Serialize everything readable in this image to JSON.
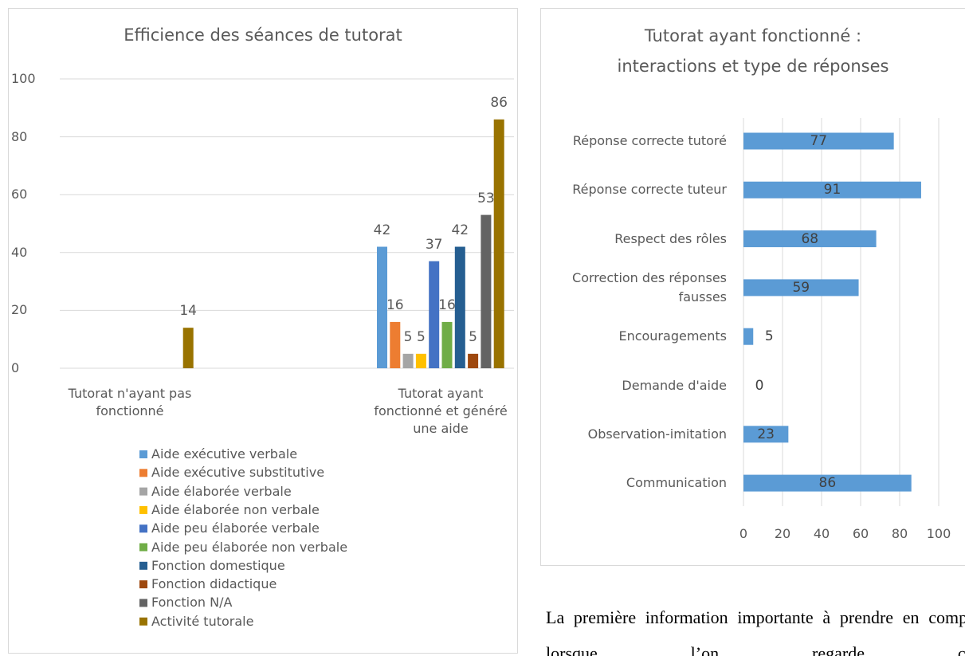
{
  "chart_data": [
    {
      "type": "bar",
      "title": "Efficience des séances de tutorat",
      "categories": [
        "Tutorat n'ayant pas fonctionné",
        "Tutorat ayant fonctionné et généré une aide"
      ],
      "series": [
        {
          "name": "Aide exécutive verbale",
          "color": "#5b9bd5",
          "values": [
            null,
            42
          ]
        },
        {
          "name": "Aide exécutive substitutive",
          "color": "#ed7d31",
          "values": [
            null,
            16
          ]
        },
        {
          "name": "Aide élaborée verbale",
          "color": "#a5a5a5",
          "values": [
            null,
            5
          ]
        },
        {
          "name": "Aide élaborée non verbale",
          "color": "#ffc000",
          "values": [
            null,
            5
          ]
        },
        {
          "name": "Aide peu élaborée verbale",
          "color": "#4472c4",
          "values": [
            null,
            37
          ]
        },
        {
          "name": "Aide peu élaborée non verbale",
          "color": "#70ad47",
          "values": [
            null,
            16
          ]
        },
        {
          "name": "Fonction domestique",
          "color": "#255e91",
          "values": [
            null,
            42
          ]
        },
        {
          "name": "Fonction didactique",
          "color": "#9e480e",
          "values": [
            null,
            5
          ]
        },
        {
          "name": "Fonction N/A",
          "color": "#636363",
          "values": [
            null,
            53
          ]
        },
        {
          "name": "Activité tutorale",
          "color": "#997300",
          "values": [
            14,
            86
          ]
        }
      ],
      "ylim": [
        0,
        100
      ],
      "yticks": [
        0,
        20,
        40,
        60,
        80,
        100
      ],
      "grid": true,
      "legend": "bottom"
    },
    {
      "type": "hbar",
      "title": "Tutorat ayant fonctionné : interactions et type de réponses",
      "categories": [
        "Réponse correcte tutoré",
        "Réponse correcte tuteur",
        "Respect des rôles",
        "Correction des réponses fausses",
        "Encouragements",
        "Demande d'aide",
        "Observation-imitation",
        "Communication"
      ],
      "values": [
        77,
        91,
        68,
        59,
        5,
        0,
        23,
        86
      ],
      "color": "#5b9bd5",
      "xlim": [
        0,
        100
      ],
      "xticks": [
        0,
        20,
        40,
        60,
        80,
        100
      ],
      "grid": true
    }
  ],
  "paragraph": "La première information importante à prendre en compte lorsque l’on regarde ces"
}
